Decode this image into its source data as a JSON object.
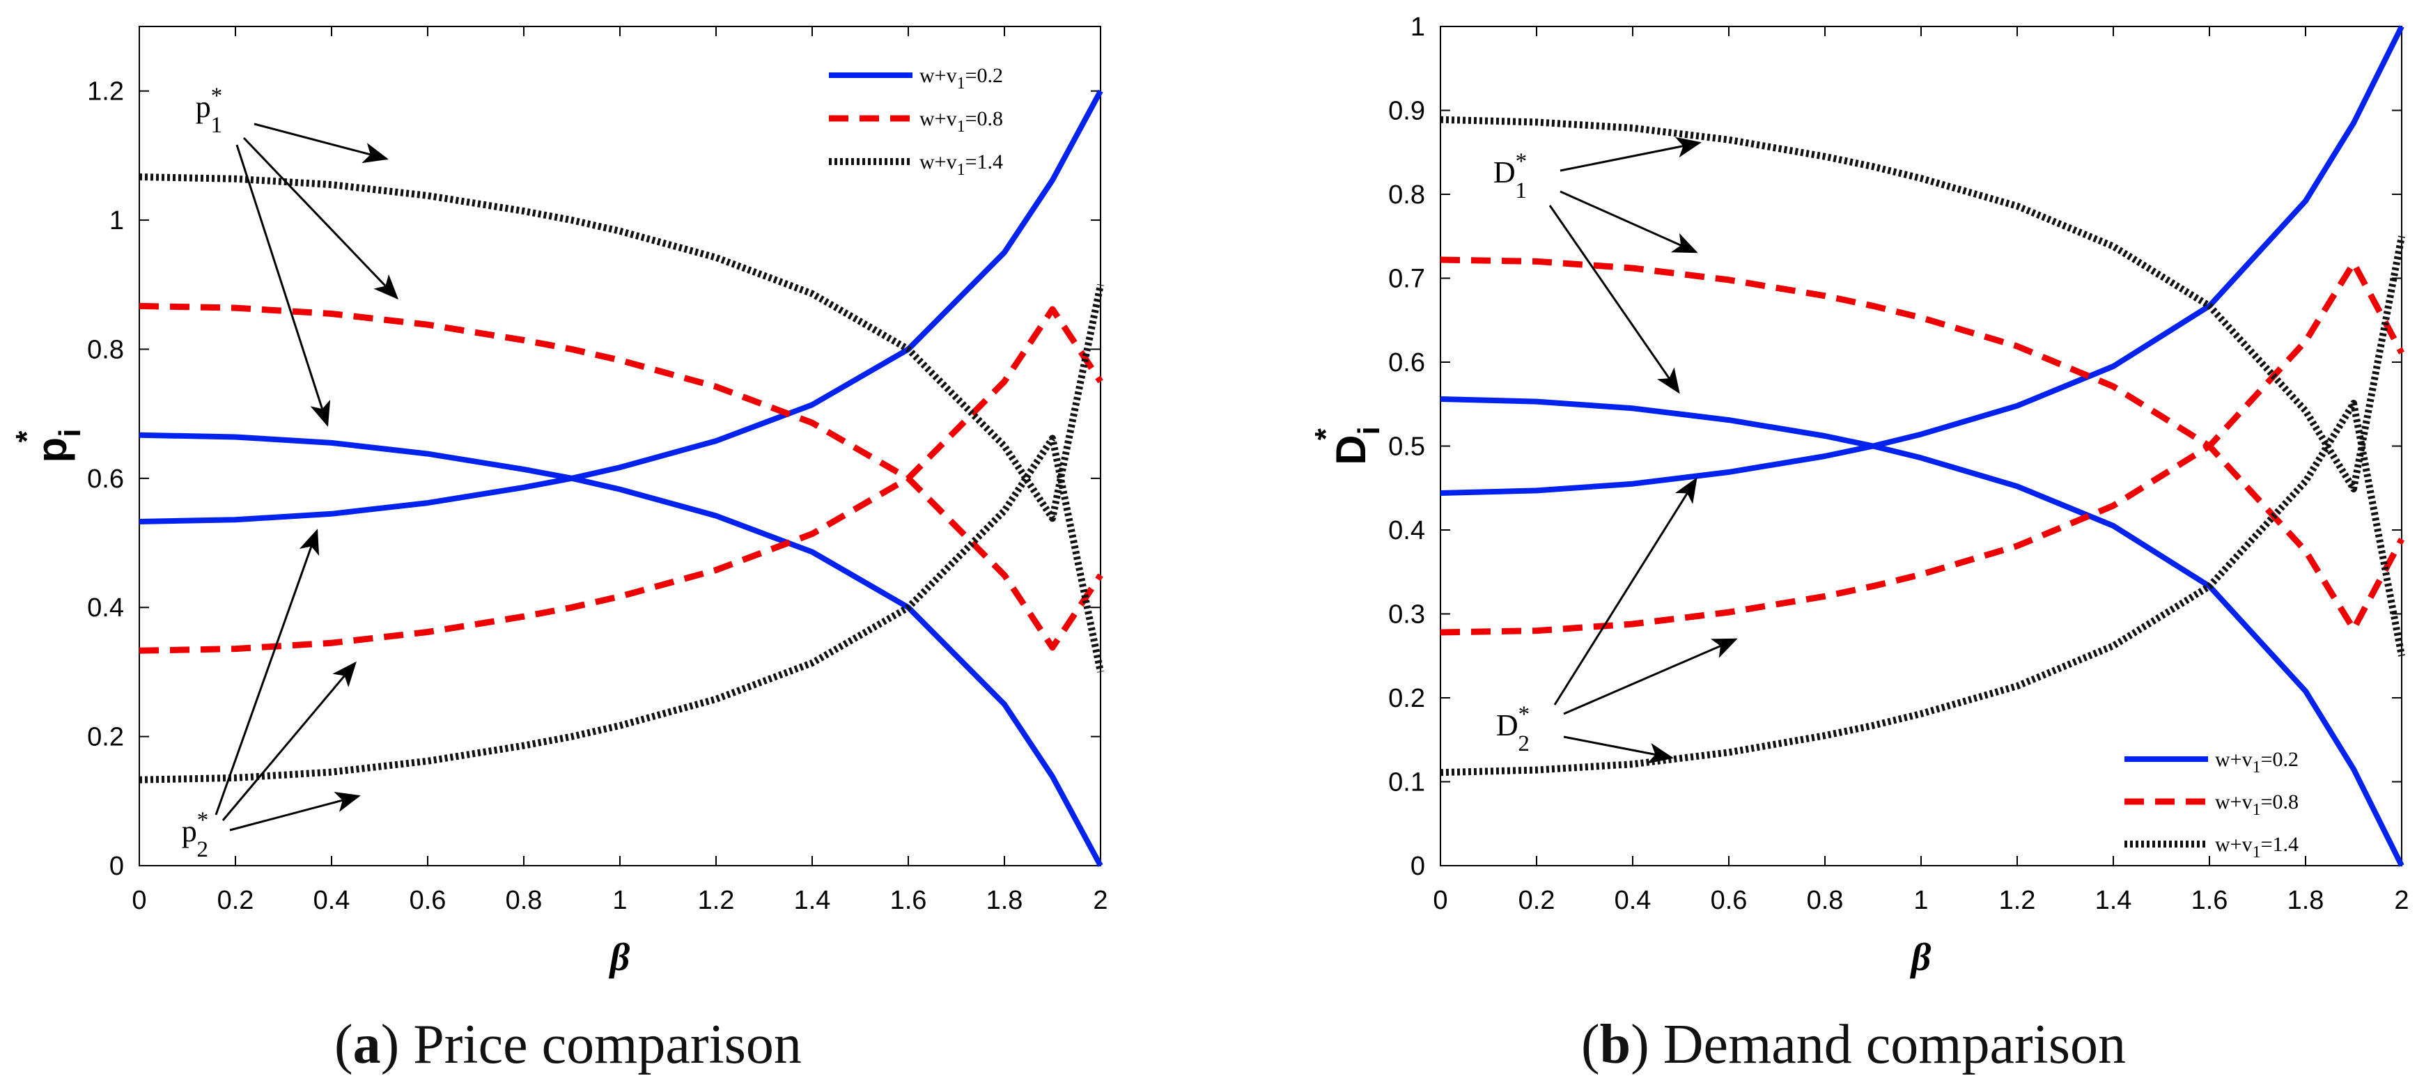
{
  "figure": {
    "captions": [
      {
        "letter": "a",
        "text": "Price comparison"
      },
      {
        "letter": "b",
        "text": "Demand comparison"
      }
    ]
  },
  "colors": {
    "s02": "#0022ee",
    "s08": "#ee0000",
    "s14": "#111111"
  },
  "chart_data": [
    {
      "type": "line",
      "id": "price",
      "xlabel": "β",
      "ylabel": {
        "base": "p",
        "sub": "i",
        "sup": "*"
      },
      "xlim": [
        0,
        2
      ],
      "ylim": [
        0,
        1.3
      ],
      "xticks": [
        "0",
        "0.2",
        "0.4",
        "0.6",
        "0.8",
        "1",
        "1.2",
        "1.4",
        "1.6",
        "1.8",
        "2"
      ],
      "yticks": [
        "0",
        "0.2",
        "0.4",
        "0.6",
        "0.8",
        "1",
        "1.2"
      ],
      "legend_position": "top-right",
      "legend": [
        {
          "text": "w+v",
          "sub": "1",
          "suffix": "=0.2",
          "style": "solid",
          "color": "#0022ee"
        },
        {
          "text": "w+v",
          "sub": "1",
          "suffix": "=0.8",
          "style": "dashed",
          "color": "#ee0000"
        },
        {
          "text": "w+v",
          "sub": "1",
          "suffix": "=1.4",
          "style": "dotted",
          "color": "#111111"
        }
      ],
      "x": [
        0,
        0.2,
        0.4,
        0.6,
        0.8,
        0.9,
        1.0,
        1.2,
        1.4,
        1.6,
        1.8,
        1.9,
        2.0
      ],
      "series": [
        {
          "name": "p1* (w+v1=0.2)",
          "style": "solid",
          "color": "#0022ee",
          "values": [
            0.667,
            0.664,
            0.655,
            0.638,
            0.614,
            0.6,
            0.583,
            0.542,
            0.486,
            0.4,
            0.25,
            0.138,
            0.0
          ]
        },
        {
          "name": "p2* (w+v1=0.2)",
          "style": "solid",
          "color": "#0022ee",
          "values": [
            0.533,
            0.536,
            0.545,
            0.562,
            0.586,
            0.6,
            0.617,
            0.658,
            0.714,
            0.8,
            0.95,
            1.062,
            1.2
          ]
        },
        {
          "name": "p1* (w+v1=0.8)",
          "style": "dashed",
          "color": "#ee0000",
          "values": [
            0.867,
            0.864,
            0.855,
            0.838,
            0.814,
            0.8,
            0.783,
            0.742,
            0.686,
            0.6,
            0.45,
            0.338,
            0.45
          ]
        },
        {
          "name": "p2* (w+v1=0.8)",
          "style": "dashed",
          "color": "#ee0000",
          "values": [
            0.333,
            0.336,
            0.345,
            0.362,
            0.386,
            0.4,
            0.417,
            0.458,
            0.514,
            0.6,
            0.75,
            0.862,
            0.75
          ]
        },
        {
          "name": "p1* (w+v1=1.4)",
          "style": "dotted",
          "color": "#111111",
          "values": [
            1.067,
            1.064,
            1.055,
            1.038,
            1.014,
            1.0,
            0.983,
            0.942,
            0.886,
            0.8,
            0.65,
            0.538,
            0.9
          ]
        },
        {
          "name": "p2* (w+v1=1.4)",
          "style": "dotted",
          "color": "#111111",
          "values": [
            0.133,
            0.136,
            0.145,
            0.162,
            0.186,
            0.2,
            0.217,
            0.258,
            0.314,
            0.4,
            0.55,
            0.662,
            0.3
          ]
        }
      ],
      "annotations": [
        {
          "label": "p",
          "sub": "1",
          "sup": "*"
        },
        {
          "label": "p",
          "sub": "2",
          "sup": "*"
        }
      ]
    },
    {
      "type": "line",
      "id": "demand",
      "xlabel": "β",
      "ylabel": {
        "base": "D",
        "sub": "i",
        "sup": "*"
      },
      "xlim": [
        0,
        2
      ],
      "ylim": [
        0,
        1
      ],
      "xticks": [
        "0",
        "0.2",
        "0.4",
        "0.6",
        "0.8",
        "1",
        "1.2",
        "1.4",
        "1.6",
        "1.8",
        "2"
      ],
      "yticks": [
        "0",
        "0.1",
        "0.2",
        "0.3",
        "0.4",
        "0.5",
        "0.6",
        "0.7",
        "0.8",
        "0.9",
        "1"
      ],
      "legend_position": "bottom-right",
      "legend": [
        {
          "text": "w+v",
          "sub": "1",
          "suffix": "=0.2",
          "style": "solid",
          "color": "#0022ee"
        },
        {
          "text": "w+v",
          "sub": "1",
          "suffix": "=0.8",
          "style": "dashed",
          "color": "#ee0000"
        },
        {
          "text": "w+v",
          "sub": "1",
          "suffix": "=1.4",
          "style": "dotted",
          "color": "#111111"
        }
      ],
      "x": [
        0,
        0.2,
        0.4,
        0.6,
        0.8,
        0.9,
        1.0,
        1.2,
        1.4,
        1.6,
        1.8,
        1.9,
        2.0
      ],
      "series": [
        {
          "name": "D1* (w+v1=0.2)",
          "style": "solid",
          "color": "#0022ee",
          "values": [
            0.556,
            0.553,
            0.545,
            0.531,
            0.512,
            0.5,
            0.486,
            0.452,
            0.405,
            0.333,
            0.208,
            0.115,
            0.0
          ]
        },
        {
          "name": "D2* (w+v1=0.2)",
          "style": "solid",
          "color": "#0022ee",
          "values": [
            0.444,
            0.447,
            0.455,
            0.469,
            0.488,
            0.5,
            0.514,
            0.548,
            0.595,
            0.667,
            0.792,
            0.885,
            1.0
          ]
        },
        {
          "name": "D1* (w+v1=0.8)",
          "style": "dashed",
          "color": "#ee0000",
          "values": [
            0.722,
            0.72,
            0.712,
            0.698,
            0.679,
            0.667,
            0.653,
            0.619,
            0.571,
            0.5,
            0.375,
            0.282,
            0.389
          ]
        },
        {
          "name": "D2* (w+v1=0.8)",
          "style": "dashed",
          "color": "#ee0000",
          "values": [
            0.278,
            0.28,
            0.288,
            0.302,
            0.321,
            0.333,
            0.347,
            0.381,
            0.429,
            0.5,
            0.625,
            0.718,
            0.611
          ]
        },
        {
          "name": "D1* (w+v1=1.4)",
          "style": "dotted",
          "color": "#111111",
          "values": [
            0.889,
            0.886,
            0.879,
            0.865,
            0.845,
            0.833,
            0.819,
            0.786,
            0.738,
            0.667,
            0.542,
            0.449,
            0.75
          ]
        },
        {
          "name": "D2* (w+v1=1.4)",
          "style": "dotted",
          "color": "#111111",
          "values": [
            0.111,
            0.114,
            0.121,
            0.135,
            0.155,
            0.167,
            0.181,
            0.214,
            0.262,
            0.333,
            0.458,
            0.551,
            0.25
          ]
        }
      ],
      "annotations": [
        {
          "label": "D",
          "sub": "1",
          "sup": "*"
        },
        {
          "label": "D",
          "sub": "2",
          "sup": "*"
        }
      ]
    }
  ]
}
